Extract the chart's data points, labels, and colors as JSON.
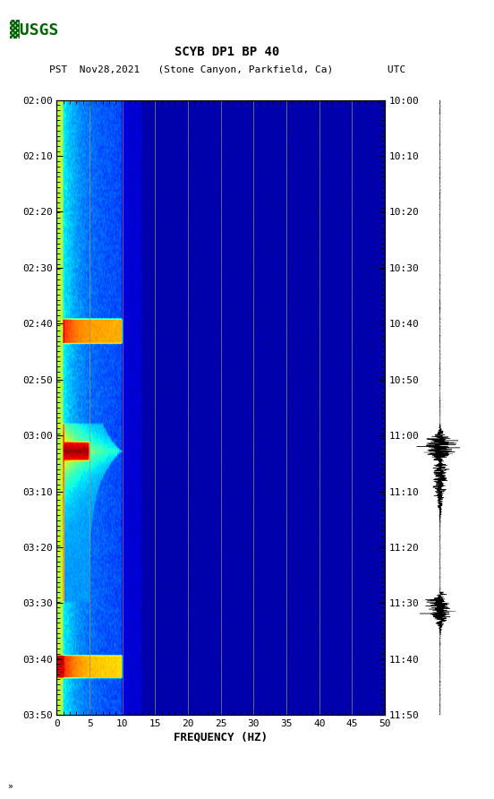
{
  "title_line1": "SCYB DP1 BP 40",
  "title_line2": "PST   Nov28,2021   (Stone Canyon, Parkfield, Ca)         UTC",
  "xlabel": "FREQUENCY (HZ)",
  "freq_min": 0,
  "freq_max": 50,
  "pst_ticks": [
    "02:00",
    "02:10",
    "02:20",
    "02:30",
    "02:40",
    "02:50",
    "03:00",
    "03:10",
    "03:20",
    "03:30",
    "03:40",
    "03:50"
  ],
  "utc_ticks": [
    "10:00",
    "10:10",
    "10:20",
    "10:30",
    "10:40",
    "10:50",
    "11:00",
    "11:10",
    "11:20",
    "11:30",
    "11:40",
    "11:50"
  ],
  "freq_ticks": [
    0,
    5,
    10,
    15,
    20,
    25,
    30,
    35,
    40,
    45,
    50
  ],
  "vert_grid_freqs": [
    5,
    10,
    15,
    20,
    25,
    30,
    35,
    40,
    45
  ],
  "background_color": "#ffffff",
  "spectrogram_bg": "#00008B",
  "colormap": "jet",
  "usgs_logo_color": "#006400"
}
